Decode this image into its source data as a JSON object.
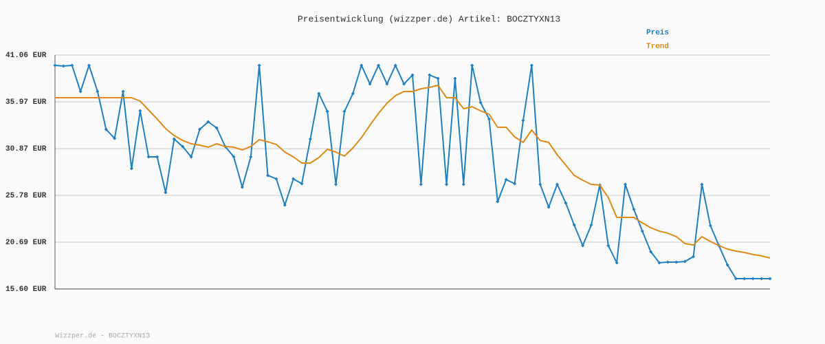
{
  "chart_data": {
    "type": "line",
    "title": "Preisentwicklung (wizzper.de) Artikel: BOCZTYXN13",
    "footer": "Wizzper.de - BOCZTYXN13",
    "ylim": [
      15.6,
      41.06
    ],
    "yticks": [
      {
        "value": 15.6,
        "label": "15.60 EUR"
      },
      {
        "value": 20.69,
        "label": "20.69 EUR"
      },
      {
        "value": 25.78,
        "label": "25.78 EUR"
      },
      {
        "value": 30.87,
        "label": "30.87 EUR"
      },
      {
        "value": 35.97,
        "label": "35.97 EUR"
      },
      {
        "value": 41.06,
        "label": "41.06 EUR"
      }
    ],
    "grid": true,
    "legend": "top-right",
    "series": [
      {
        "name": "Preis",
        "color": "#1f7fc0",
        "markers": true,
        "values": [
          39.94,
          39.86,
          39.94,
          37.09,
          39.94,
          37.09,
          32.97,
          31.99,
          37.09,
          28.7,
          34.99,
          29.98,
          29.98,
          26.09,
          31.92,
          31.1,
          29.98,
          32.97,
          33.8,
          33.12,
          31.1,
          29.98,
          26.68,
          29.98,
          39.94,
          27.96,
          27.58,
          24.73,
          27.58,
          27.06,
          31.92,
          36.87,
          34.92,
          26.98,
          34.92,
          36.87,
          39.94,
          37.91,
          39.94,
          37.91,
          39.94,
          37.91,
          38.89,
          26.98,
          38.89,
          38.51,
          26.98,
          38.51,
          26.98,
          39.94,
          35.89,
          34.1,
          25.11,
          27.51,
          27.06,
          33.95,
          39.94,
          26.98,
          24.51,
          26.98,
          24.96,
          22.56,
          20.32,
          22.56,
          26.91,
          20.32,
          18.45,
          26.98,
          24.28,
          21.89,
          19.64,
          18.45,
          18.52,
          18.52,
          18.59,
          19.12,
          26.98,
          22.49,
          20.32,
          18.22,
          16.72,
          16.72,
          16.72,
          16.72,
          16.72
        ]
      },
      {
        "name": "Trend",
        "color": "#dd8a1a",
        "markers": false,
        "values": [
          36.42,
          36.42,
          36.42,
          36.42,
          36.42,
          36.42,
          36.42,
          36.42,
          36.42,
          36.42,
          36.04,
          35.07,
          34.1,
          33.05,
          32.3,
          31.77,
          31.4,
          31.25,
          31.03,
          31.4,
          31.1,
          31.03,
          30.73,
          31.1,
          31.85,
          31.62,
          31.33,
          30.5,
          29.98,
          29.3,
          29.3,
          29.9,
          30.8,
          30.5,
          30.05,
          30.95,
          32.07,
          33.42,
          34.7,
          35.82,
          36.64,
          37.09,
          37.09,
          37.39,
          37.54,
          37.77,
          36.42,
          36.42,
          35.22,
          35.44,
          34.99,
          34.62,
          33.2,
          33.2,
          32.15,
          31.55,
          32.9,
          31.77,
          31.55,
          30.2,
          29.08,
          27.96,
          27.43,
          26.98,
          26.91,
          25.56,
          23.39,
          23.39,
          23.39,
          22.79,
          22.26,
          21.89,
          21.67,
          21.29,
          20.54,
          20.39,
          21.29,
          20.77,
          20.32,
          19.94,
          19.72,
          19.57,
          19.35,
          19.2,
          18.97
        ]
      }
    ]
  }
}
